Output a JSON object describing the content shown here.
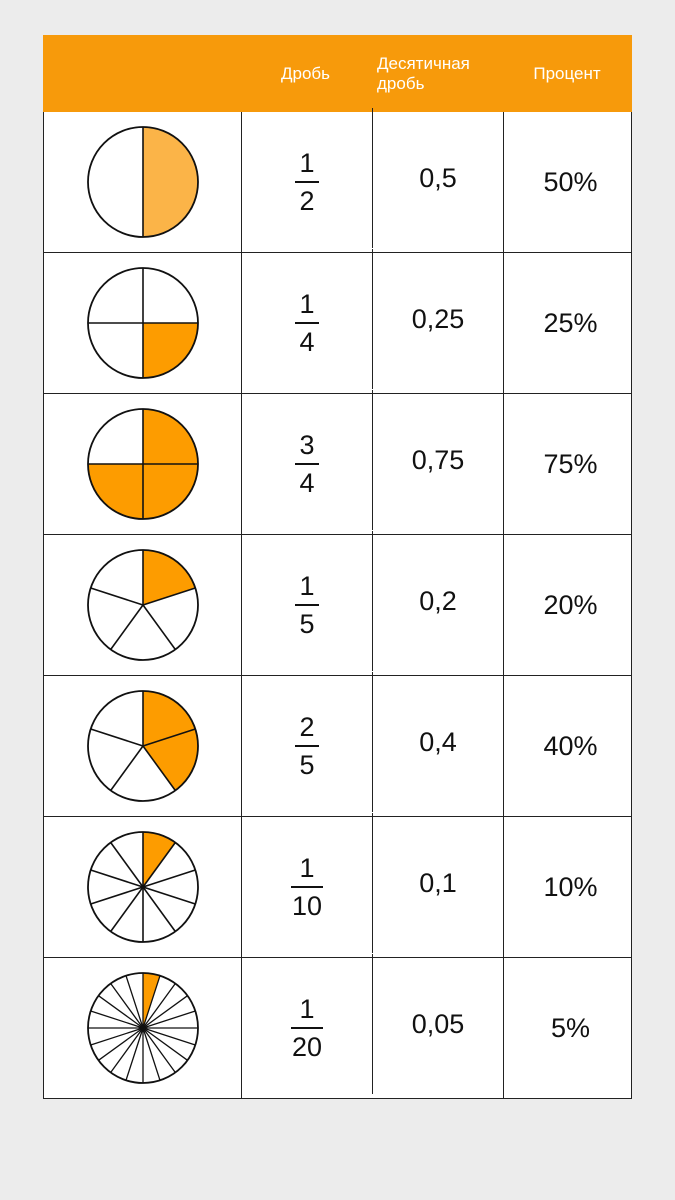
{
  "header": {
    "col_fraction": "Дробь",
    "col_decimal_line1": "Десятичная",
    "col_decimal_line2": "дробь",
    "col_percent": "Процент"
  },
  "colors": {
    "header_bg": "#f79a0b",
    "fill_light": "#fbb448",
    "fill": "#fd9c00"
  },
  "rows": [
    {
      "num": "1",
      "den": "2",
      "decimal": "0,5",
      "percent": "50%",
      "pie": {
        "parts": 2,
        "filled": 1,
        "start_deg": 0,
        "icon": "half-pie-icon"
      }
    },
    {
      "num": "1",
      "den": "4",
      "decimal": "0,25",
      "percent": "25%",
      "pie": {
        "parts": 4,
        "filled": 1,
        "start_deg": 90,
        "icon": "quarter-pie-icon"
      }
    },
    {
      "num": "3",
      "den": "4",
      "decimal": "0,75",
      "percent": "75%",
      "pie": {
        "parts": 4,
        "filled": 3,
        "start_deg": 0,
        "icon": "three-quarter-pie-icon"
      }
    },
    {
      "num": "1",
      "den": "5",
      "decimal": "0,2",
      "percent": "20%",
      "pie": {
        "parts": 5,
        "filled": 1,
        "start_deg": 0,
        "icon": "fifth-pie-icon"
      }
    },
    {
      "num": "2",
      "den": "5",
      "decimal": "0,4",
      "percent": "40%",
      "pie": {
        "parts": 5,
        "filled": 2,
        "start_deg": 0,
        "icon": "two-fifths-pie-icon"
      }
    },
    {
      "num": "1",
      "den": "10",
      "decimal": "0,1",
      "percent": "10%",
      "pie": {
        "parts": 10,
        "filled": 1,
        "start_deg": 0,
        "icon": "tenth-pie-icon"
      }
    },
    {
      "num": "1",
      "den": "20",
      "decimal": "0,05",
      "percent": "5%",
      "pie": {
        "parts": 20,
        "filled": 1,
        "start_deg": 0,
        "icon": "twentieth-pie-icon"
      }
    }
  ]
}
